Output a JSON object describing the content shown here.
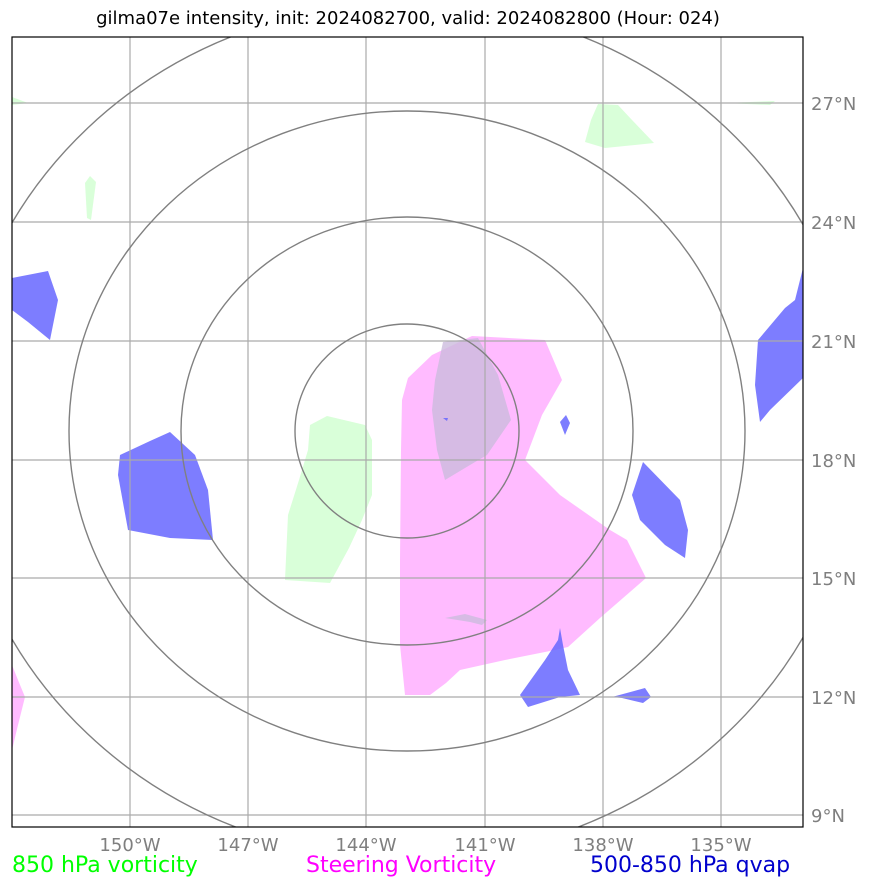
{
  "title": "gilma07e intensity, init: 2024082700, valid: 2024082800 (Hour: 024)",
  "lat_labels": [
    "27°N",
    "24°N",
    "21°N",
    "18°N",
    "15°N",
    "12°N",
    "9°N"
  ],
  "lon_labels": [
    "150°W",
    "147°W",
    "144°W",
    "141°W",
    "138°W",
    "135°W"
  ],
  "legend": {
    "green": "850 hPa vorticity",
    "magenta": "Steering Vorticity",
    "blue": "500-850 hPa qvap"
  },
  "colors": {
    "green_fill": "#ccffcc",
    "magenta_fill": "#ffaaff",
    "blue_fill": "#6666ff",
    "grid": "#aaaaaa",
    "rings": "#808080",
    "labels": "#7f7f7f"
  }
}
